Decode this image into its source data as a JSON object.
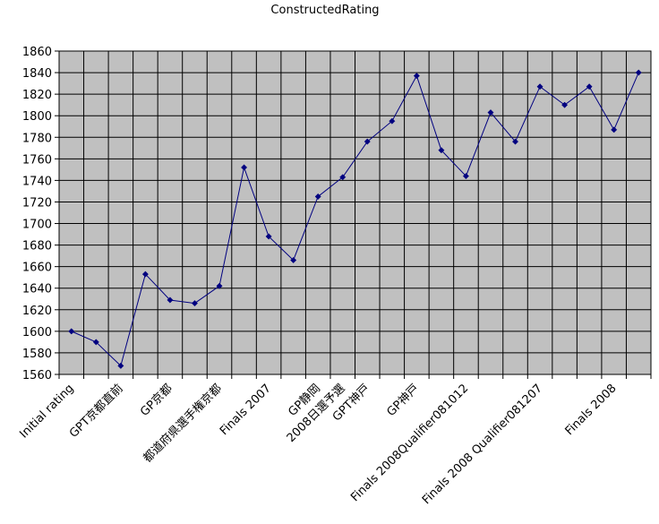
{
  "chart_data": {
    "type": "line",
    "title": "ConstructedRating",
    "xlabel": "",
    "ylabel": "",
    "ylim": [
      1560,
      1860
    ],
    "ytick_step": 20,
    "grid": true,
    "legend": "none",
    "colors": {
      "line": "#000080",
      "plot_bg": "#c0c0c0",
      "grid": "#000000"
    },
    "x_labels": [
      "Initial rating",
      "",
      "GPT京都直前",
      "",
      "GP京都",
      "",
      "都道府県選手権京都",
      "",
      "Finals 2007",
      "",
      "GP静岡",
      "2008日選予選",
      "GPT神戸",
      "",
      "GP神戸",
      "",
      "Finals 2008Qualifier081012",
      "",
      "",
      "Finals 2008 Qualifier081207",
      "",
      "",
      "Finals 2008",
      ""
    ],
    "series": [
      {
        "values": [
          1600,
          1590,
          1568,
          1653,
          1629,
          1626,
          1642,
          1752,
          1688,
          1666,
          1725,
          1743,
          1776,
          1795,
          1837,
          1768,
          1744,
          1803,
          1776,
          1827,
          1810,
          1827,
          1787,
          1840
        ]
      }
    ]
  }
}
